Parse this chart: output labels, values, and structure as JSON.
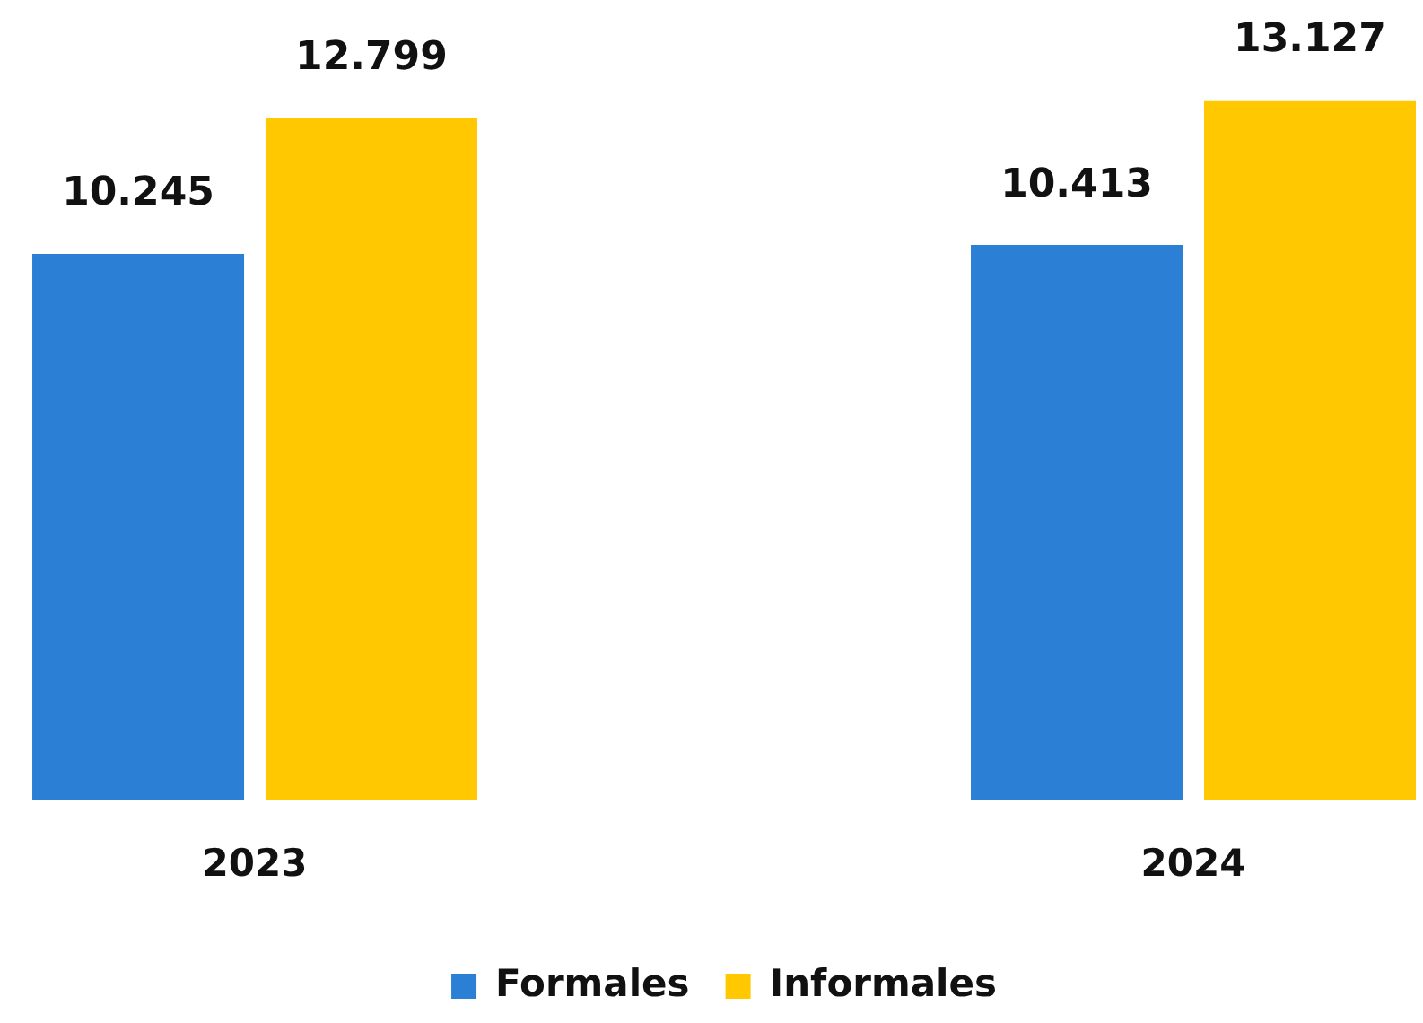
{
  "chart_data": {
    "type": "bar",
    "categories": [
      "2023",
      "2024"
    ],
    "series": [
      {
        "name": "Formales",
        "color": "#2b7fd4",
        "values": [
          10245,
          10413
        ],
        "value_labels": [
          "10.245",
          "10.413"
        ]
      },
      {
        "name": "Informales",
        "color": "#ffc800",
        "values": [
          12799,
          13127
        ],
        "value_labels": [
          "12.799",
          "13.127"
        ]
      }
    ],
    "legend": "bottom",
    "grid": false
  }
}
